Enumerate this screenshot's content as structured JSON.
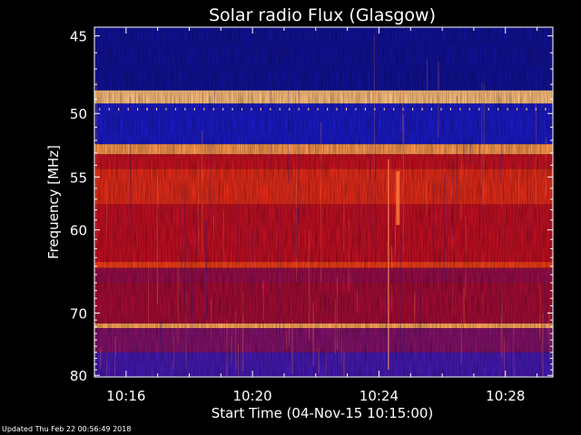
{
  "chart_data": {
    "type": "heatmap",
    "title": "Solar radio Flux (Glasgow)",
    "xlabel": "Start Time (04-Nov-15 10:15:00)",
    "ylabel": "Frequency [MHz]",
    "x_ticks": [
      "10:16",
      "10:20",
      "10:24",
      "10:28"
    ],
    "x_tick_minutes": [
      1,
      5,
      9,
      13
    ],
    "x_range_minutes": [
      0,
      14.5
    ],
    "y_ticks": [
      "45",
      "50",
      "55",
      "60",
      "70",
      "80"
    ],
    "y_tick_values": [
      45,
      50,
      55,
      60,
      70,
      80
    ],
    "y_scale": "reciprocal",
    "y_range_mhz": [
      44.5,
      80.3
    ],
    "intensity_bands_mhz": [
      {
        "from": 44.5,
        "to": 48.4,
        "level": 0.05
      },
      {
        "from": 48.4,
        "to": 49.3,
        "level": 0.95
      },
      {
        "from": 49.3,
        "to": 52.3,
        "level": 0.12
      },
      {
        "from": 52.3,
        "to": 53.1,
        "level": 0.9
      },
      {
        "from": 53.1,
        "to": 54.3,
        "level": 0.6
      },
      {
        "from": 54.3,
        "to": 57.5,
        "level": 0.72
      },
      {
        "from": 57.5,
        "to": 63.5,
        "level": 0.58
      },
      {
        "from": 63.5,
        "to": 64.2,
        "level": 0.78
      },
      {
        "from": 64.2,
        "to": 66.0,
        "level": 0.45
      },
      {
        "from": 66.0,
        "to": 71.5,
        "level": 0.48
      },
      {
        "from": 71.5,
        "to": 72.2,
        "level": 0.92
      },
      {
        "from": 72.2,
        "to": 76.0,
        "level": 0.4
      },
      {
        "from": 76.0,
        "to": 80.3,
        "level": 0.25
      }
    ],
    "features": [
      {
        "time_minutes": 9.3,
        "from_mhz": 53.5,
        "to_mhz": 79.0,
        "kind": "narrow vertical burst"
      },
      {
        "time_minutes": 9.6,
        "from_mhz": 54.5,
        "to_mhz": 59.5,
        "kind": "burst"
      }
    ],
    "grid": false,
    "legend": "none",
    "colors": {
      "background": "#000000",
      "axis": "#ffffff",
      "low": "#1a1adc",
      "mid": "#c8102a",
      "high": "#ff5020",
      "peak": "#ffe0a0"
    }
  },
  "footer": {
    "updated": "Updated Thu Feb 22 00:56:49 2018"
  }
}
